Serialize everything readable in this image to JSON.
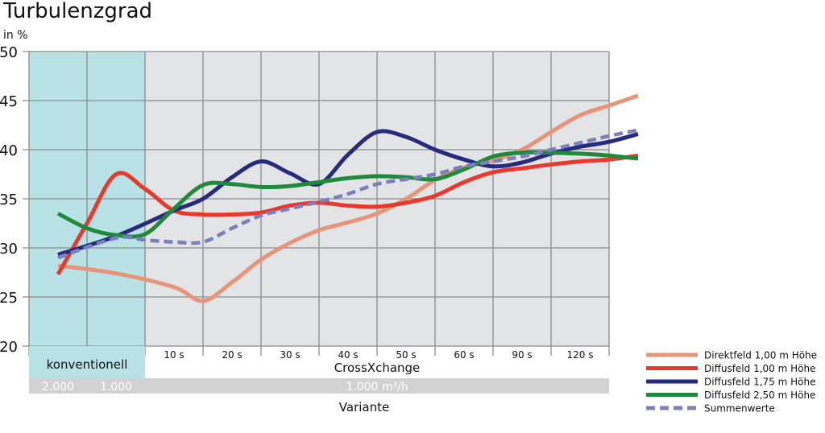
{
  "chart_data": {
    "type": "line",
    "title": "Turbulenzgrad",
    "ylabel": "in %",
    "ylim": [
      20,
      50
    ],
    "y_ticks": [
      "50",
      "45",
      "40",
      "35",
      "30",
      "25",
      "20"
    ],
    "grid": true,
    "legend_position": "right",
    "categories": [
      "2.000",
      "1.000",
      "10 s",
      "20 s",
      "30 s",
      "40 s",
      "50 s",
      "60 s",
      "90 s",
      "120 s"
    ],
    "group_labels": {
      "conventional": "konventionell",
      "crossxchange": "CrossXchange"
    },
    "volume_labels": [
      "2.000",
      "1.000",
      "1.000 m³/h"
    ],
    "xlabel": "Variante",
    "colors": {
      "conventional_band": "#b8e2e5",
      "plot_background": "#e3e4e6",
      "grid": "#8c8c8c",
      "volume_bar": "#d2d2d2"
    },
    "series": [
      {
        "name": "Direktfeld 1,00 m Höhe",
        "color": "#e6957a",
        "dashed": false,
        "x": [
          -0.5,
          0.5,
          1.5,
          2.0,
          2.5,
          3.0,
          3.5,
          4.0,
          4.5,
          5.0,
          5.5,
          6.0,
          6.5,
          7.0,
          7.5,
          8.0,
          8.5,
          9.0,
          9.5
        ],
        "y": [
          28.2,
          27.4,
          26.0,
          24.6,
          26.5,
          28.8,
          30.5,
          31.8,
          32.6,
          33.5,
          35.0,
          36.9,
          38.2,
          38.9,
          40.0,
          41.8,
          43.5,
          44.5,
          45.5
        ]
      },
      {
        "name": "Diffusfeld 1,00 m Höhe",
        "color": "#e8392c",
        "dashed": false,
        "x": [
          -0.5,
          0,
          0.5,
          1.0,
          1.5,
          2.0,
          2.5,
          3.0,
          3.5,
          4.0,
          4.5,
          5.0,
          5.5,
          6.0,
          6.5,
          7.0,
          7.5,
          8.0,
          8.5,
          9.0,
          9.5
        ],
        "y": [
          27.3,
          32.5,
          37.5,
          36.0,
          33.8,
          33.4,
          33.4,
          33.6,
          34.3,
          34.6,
          34.3,
          34.2,
          34.6,
          35.3,
          36.7,
          37.7,
          38.1,
          38.5,
          38.8,
          39.0,
          39.4
        ]
      },
      {
        "name": "Diffusfeld 1,75 m Höhe",
        "color": "#262b7d",
        "dashed": false,
        "x": [
          -0.5,
          0.5,
          1.5,
          2.0,
          2.5,
          3.0,
          3.5,
          4.0,
          4.5,
          5.0,
          5.5,
          6.0,
          6.5,
          7.0,
          7.5,
          8.0,
          8.5,
          9.0,
          9.5
        ],
        "y": [
          29.3,
          31.2,
          33.8,
          35.0,
          37.2,
          38.8,
          37.6,
          36.5,
          39.5,
          41.8,
          41.3,
          40.0,
          39.0,
          38.3,
          38.7,
          39.6,
          40.3,
          40.8,
          41.6
        ]
      },
      {
        "name": "Diffusfeld 2,50 m Höhe",
        "color": "#1f8a3a",
        "dashed": false,
        "x": [
          -0.5,
          0,
          0.5,
          1.0,
          1.5,
          2.0,
          2.5,
          3.0,
          3.5,
          4.0,
          4.5,
          5.0,
          5.5,
          6.0,
          6.5,
          7.0,
          7.5,
          8.0,
          8.5,
          9.0,
          9.5
        ],
        "y": [
          33.5,
          32.0,
          31.3,
          31.4,
          34.0,
          36.4,
          36.5,
          36.2,
          36.3,
          36.7,
          37.1,
          37.3,
          37.2,
          37.0,
          38.0,
          39.3,
          39.7,
          39.7,
          39.6,
          39.4,
          39.1
        ]
      },
      {
        "name": "Summenwerte",
        "color": "#7c7fbf",
        "dashed": true,
        "x": [
          -0.5,
          0.5,
          1.0,
          1.5,
          2.0,
          2.5,
          3.0,
          3.5,
          4.0,
          4.5,
          5.0,
          5.5,
          6.0,
          6.5,
          7.0,
          7.5,
          8.0,
          8.5,
          9.0,
          9.5
        ],
        "y": [
          29.0,
          31.0,
          30.8,
          30.6,
          30.6,
          32.0,
          33.3,
          34.0,
          34.7,
          35.5,
          36.5,
          37.0,
          37.5,
          38.3,
          38.8,
          39.3,
          40.0,
          40.7,
          41.4,
          42.0
        ]
      }
    ]
  }
}
